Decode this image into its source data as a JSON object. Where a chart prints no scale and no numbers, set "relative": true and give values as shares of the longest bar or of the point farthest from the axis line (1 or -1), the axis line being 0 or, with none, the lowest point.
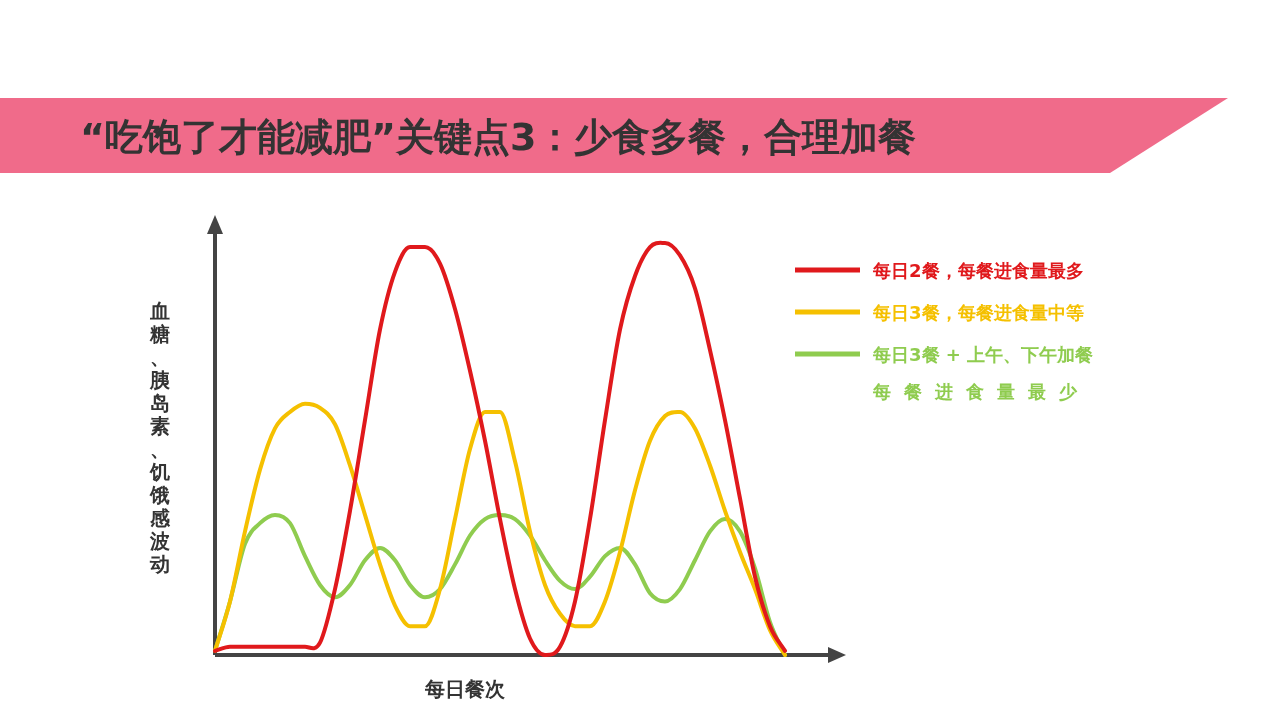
{
  "chart_data": {
    "type": "line",
    "title": "“吃饱了才能减肥”关键点3：少食多餐，合理加餐",
    "xlabel": "每日餐次",
    "ylabel": "血糖、胰岛素、饥饿感波动",
    "relative": true,
    "legend": "right",
    "grid": false,
    "marker": "none",
    "line_style": "solid",
    "categories": [
      null,
      null,
      null,
      null,
      null,
      null,
      null,
      null,
      null,
      null,
      null,
      null,
      null,
      null,
      null,
      null,
      null,
      null,
      null,
      null,
      null,
      null,
      null,
      null,
      null,
      null,
      null,
      null,
      null,
      null,
      null,
      null,
      null,
      null,
      null,
      null,
      null,
      null,
      null,
      null
    ],
    "series": [
      {
        "name": "每日2餐，每餐进食量最多",
        "color": "#e0191c",
        "values": [
          0.01,
          0.02,
          0.02,
          0.02,
          0.02,
          0.02,
          0.02,
          0.03,
          0.16,
          0.35,
          0.57,
          0.79,
          0.93,
          0.99,
          0.99,
          0.95,
          0.84,
          0.69,
          0.52,
          0.33,
          0.16,
          0.04,
          0,
          0.02,
          0.13,
          0.33,
          0.57,
          0.79,
          0.92,
          0.99,
          1,
          0.97,
          0.89,
          0.74,
          0.57,
          0.38,
          0.19,
          0.07,
          0.01,
          null
        ]
      },
      {
        "name": "每日3餐，每餐进食量中等",
        "color": "#f5c000",
        "values": [
          0.01,
          0.13,
          0.3,
          0.45,
          0.55,
          0.59,
          0.61,
          0.6,
          0.56,
          0.46,
          0.34,
          0.22,
          0.12,
          0.07,
          0.07,
          0.16,
          0.33,
          0.5,
          0.59,
          0.59,
          0.47,
          0.3,
          0.17,
          0.1,
          0.07,
          0.07,
          0.13,
          0.25,
          0.4,
          0.52,
          0.58,
          0.59,
          0.55,
          0.46,
          0.35,
          0.25,
          0.16,
          0.06,
          0,
          null
        ]
      },
      {
        "name": "每日3餐 + 上午、下午加餐每餐进食量最少",
        "color": "#8fcc4f",
        "values": [
          0.01,
          0.13,
          0.27,
          0.32,
          0.34,
          0.32,
          0.24,
          0.17,
          0.14,
          0.17,
          0.23,
          0.26,
          0.23,
          0.17,
          0.14,
          0.16,
          0.22,
          0.29,
          0.33,
          0.34,
          0.33,
          0.29,
          0.23,
          0.18,
          0.16,
          0.19,
          0.24,
          0.26,
          0.22,
          0.15,
          0.13,
          0.16,
          0.23,
          0.3,
          0.33,
          0.3,
          0.21,
          0.08,
          0,
          null
        ]
      }
    ]
  }
}
